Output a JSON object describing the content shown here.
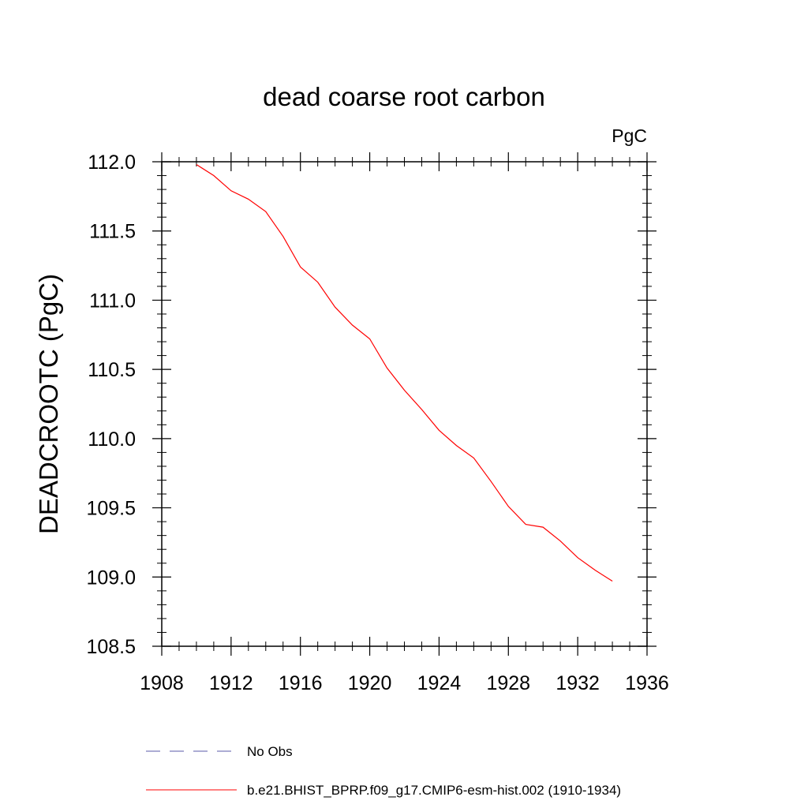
{
  "chart_data": {
    "type": "line",
    "title": "dead coarse root carbon",
    "units_label": "PgC",
    "ylabel": "DEADCROOTC  (PgC)",
    "xlabel": "",
    "xlim": [
      1908,
      1936
    ],
    "ylim": [
      108.5,
      112.0
    ],
    "x_ticks": [
      1908,
      1912,
      1916,
      1920,
      1924,
      1928,
      1932,
      1936
    ],
    "x_tick_labels": [
      "1908",
      "1912",
      "1916",
      "1920",
      "1924",
      "1928",
      "1932",
      "1936"
    ],
    "y_ticks": [
      108.5,
      109.0,
      109.5,
      110.0,
      110.5,
      111.0,
      111.5,
      112.0
    ],
    "y_tick_labels": [
      "108.5",
      "109.0",
      "109.5",
      "110.0",
      "110.5",
      "111.0",
      "111.5",
      "112.0"
    ],
    "grid": false,
    "legend_position": "bottom",
    "series": [
      {
        "name": "b.e21.BHIST_BPRP.f09_g17.CMIP6-esm-hist.002 (1910-1934)",
        "color": "#ff0000",
        "style": "solid",
        "x": [
          1910,
          1911,
          1912,
          1913,
          1914,
          1915,
          1916,
          1917,
          1918,
          1919,
          1920,
          1921,
          1922,
          1923,
          1924,
          1925,
          1926,
          1927,
          1928,
          1929,
          1930,
          1931,
          1932,
          1933,
          1934
        ],
        "y": [
          111.98,
          111.9,
          111.79,
          111.73,
          111.64,
          111.46,
          111.24,
          111.13,
          110.95,
          110.82,
          110.72,
          110.51,
          110.35,
          110.21,
          110.06,
          109.95,
          109.86,
          109.69,
          109.51,
          109.38,
          109.36,
          109.26,
          109.14,
          109.05,
          108.97
        ]
      }
    ],
    "legend": [
      {
        "label": "No Obs",
        "color": "#5a5aa8",
        "style": "dashed"
      },
      {
        "label": "b.e21.BHIST_BPRP.f09_g17.CMIP6-esm-hist.002 (1910-1934)",
        "color": "#ff0000",
        "style": "solid"
      }
    ]
  }
}
